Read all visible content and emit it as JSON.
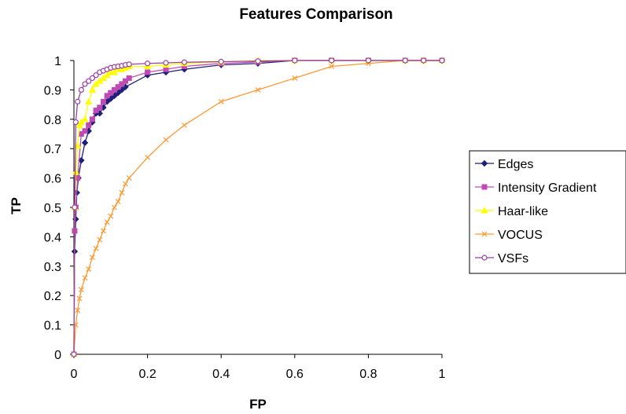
{
  "chart_data": {
    "type": "line",
    "title": "Features Comparison",
    "xlabel": "FP",
    "ylabel": "TP",
    "xlim": [
      0,
      1
    ],
    "ylim": [
      0,
      1
    ],
    "x_ticks": [
      "0",
      "0.2",
      "0.4",
      "0.6",
      "0.8",
      "1"
    ],
    "y_ticks": [
      "0",
      "0.1",
      "0.2",
      "0.3",
      "0.4",
      "0.5",
      "0.6",
      "0.7",
      "0.8",
      "0.9",
      "1"
    ],
    "grid": false,
    "legend_position": "right",
    "series": [
      {
        "name": "Edges",
        "color": "#1f1f7a",
        "marker": "diamond",
        "x": [
          0,
          0.002,
          0.005,
          0.008,
          0.012,
          0.02,
          0.03,
          0.04,
          0.05,
          0.06,
          0.07,
          0.08,
          0.09,
          0.1,
          0.11,
          0.12,
          0.13,
          0.14,
          0.2,
          0.25,
          0.3,
          0.4,
          0.5,
          0.6,
          0.7,
          0.8,
          0.9,
          0.95,
          1
        ],
        "y": [
          0,
          0.35,
          0.46,
          0.55,
          0.6,
          0.66,
          0.72,
          0.76,
          0.79,
          0.82,
          0.82,
          0.84,
          0.86,
          0.87,
          0.88,
          0.89,
          0.9,
          0.91,
          0.95,
          0.96,
          0.97,
          0.985,
          0.99,
          1.0,
          1.0,
          1.0,
          1.0,
          1.0,
          1.0
        ]
      },
      {
        "name": "Intensity Gradient",
        "color": "#c04ab4",
        "marker": "square",
        "x": [
          0,
          0.002,
          0.005,
          0.01,
          0.02,
          0.03,
          0.04,
          0.05,
          0.06,
          0.07,
          0.08,
          0.09,
          0.1,
          0.11,
          0.12,
          0.13,
          0.14,
          0.15,
          0.2,
          0.25,
          0.3,
          0.4,
          0.5,
          0.6,
          0.7,
          0.8,
          0.9,
          0.95,
          1
        ],
        "y": [
          0,
          0.42,
          0.5,
          0.6,
          0.75,
          0.76,
          0.78,
          0.8,
          0.83,
          0.84,
          0.86,
          0.88,
          0.89,
          0.9,
          0.91,
          0.92,
          0.93,
          0.94,
          0.96,
          0.97,
          0.98,
          0.99,
          0.995,
          1.0,
          1.0,
          1.0,
          1.0,
          1.0,
          1.0
        ]
      },
      {
        "name": "Haar-like",
        "color": "#ffff00",
        "marker": "triangle",
        "x": [
          0,
          0.002,
          0.005,
          0.01,
          0.015,
          0.02,
          0.03,
          0.04,
          0.05,
          0.06,
          0.07,
          0.08,
          0.09,
          0.1,
          0.11,
          0.12,
          0.13,
          0.14,
          0.15,
          0.2,
          0.25,
          0.3,
          0.4,
          0.5,
          0.6,
          0.7,
          0.8,
          0.9,
          0.95,
          1
        ],
        "y": [
          0,
          0.5,
          0.62,
          0.71,
          0.78,
          0.79,
          0.8,
          0.86,
          0.9,
          0.92,
          0.93,
          0.94,
          0.95,
          0.96,
          0.96,
          0.97,
          0.97,
          0.975,
          0.98,
          0.98,
          0.985,
          0.99,
          0.995,
          1.0,
          1.0,
          1.0,
          1.0,
          1.0,
          1.0,
          1.0
        ]
      },
      {
        "name": "VOCUS",
        "color": "#ff9933",
        "marker": "x",
        "x": [
          0,
          0.005,
          0.01,
          0.015,
          0.02,
          0.03,
          0.04,
          0.05,
          0.06,
          0.07,
          0.08,
          0.09,
          0.1,
          0.11,
          0.12,
          0.13,
          0.14,
          0.15,
          0.2,
          0.25,
          0.3,
          0.4,
          0.5,
          0.6,
          0.7,
          0.8,
          0.9,
          0.95,
          1
        ],
        "y": [
          0,
          0.1,
          0.15,
          0.19,
          0.22,
          0.26,
          0.29,
          0.33,
          0.36,
          0.39,
          0.42,
          0.45,
          0.47,
          0.5,
          0.52,
          0.55,
          0.58,
          0.6,
          0.67,
          0.73,
          0.78,
          0.86,
          0.9,
          0.94,
          0.98,
          0.99,
          1.0,
          1.0,
          1.0
        ]
      },
      {
        "name": "VSFs",
        "color": "#9b3fa6",
        "marker": "circle",
        "x": [
          0,
          0.002,
          0.005,
          0.01,
          0.02,
          0.03,
          0.04,
          0.05,
          0.06,
          0.07,
          0.08,
          0.09,
          0.1,
          0.11,
          0.12,
          0.13,
          0.14,
          0.15,
          0.2,
          0.25,
          0.3,
          0.4,
          0.5,
          0.6,
          0.7,
          0.8,
          0.9,
          0.95,
          1
        ],
        "y": [
          0,
          0.5,
          0.79,
          0.86,
          0.9,
          0.92,
          0.93,
          0.94,
          0.95,
          0.96,
          0.965,
          0.97,
          0.975,
          0.978,
          0.98,
          0.982,
          0.985,
          0.987,
          0.99,
          0.992,
          0.994,
          0.996,
          0.998,
          1.0,
          1.0,
          1.0,
          1.0,
          1.0,
          1.0
        ]
      }
    ]
  }
}
